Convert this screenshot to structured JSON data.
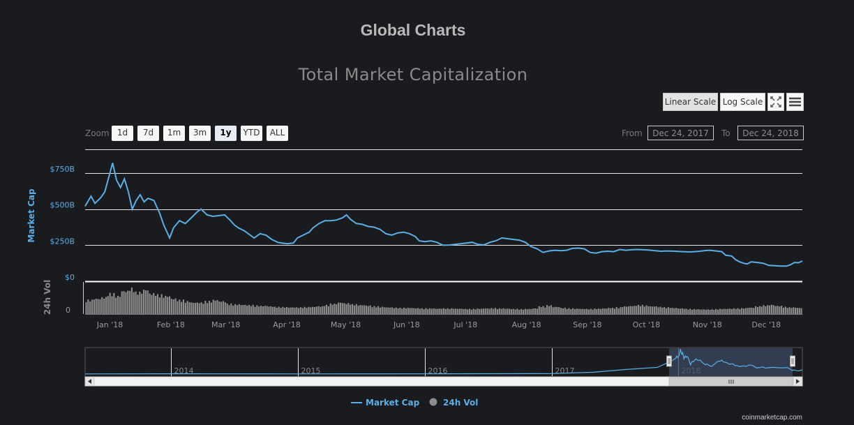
{
  "page_title": "Global Charts",
  "chart_title": "Total Market Capitalization",
  "buttons": {
    "linear_scale": "Linear Scale",
    "log_scale": "Log Scale",
    "fullscreen_icon": "fullscreen-icon",
    "menu_icon": "hamburger-menu-icon"
  },
  "zoom": {
    "label": "Zoom",
    "options": [
      "1d",
      "7d",
      "1m",
      "3m",
      "1y",
      "YTD",
      "ALL"
    ],
    "selected": "1y"
  },
  "range": {
    "from_label": "From",
    "from_value": "Dec 24, 2017",
    "to_label": "To",
    "to_value": "Dec 24, 2018"
  },
  "credit": "coinmarketcap.com",
  "colors": {
    "background": "#1a1b1f",
    "market_cap": "#5aafe7",
    "volume": "#8c8c8c",
    "navigator_mask": "#3b4a63"
  },
  "chart_data": {
    "type": "line",
    "x_range": [
      "2017-12-24",
      "2018-12-24"
    ],
    "x_ticks": [
      "Jan '18",
      "Feb '18",
      "Mar '18",
      "Apr '18",
      "May '18",
      "Jun '18",
      "Jul '18",
      "Aug '18",
      "Sep '18",
      "Oct '18",
      "Nov '18",
      "Dec '18"
    ],
    "y_axis": {
      "label": "Market Cap",
      "ticks": [
        "$0",
        "$250B",
        "$500B",
        "$750B"
      ],
      "range": [
        0,
        900
      ],
      "unit": "B USD"
    },
    "vol_axis": {
      "label": "24h Vol",
      "ticks": [
        "0"
      ]
    },
    "grid": true,
    "legend": {
      "position": "bottom-center",
      "items": [
        "Market Cap",
        "24h Vol"
      ]
    },
    "series": [
      {
        "name": "Market Cap",
        "points": [
          [
            "2017-12-24",
            520
          ],
          [
            "2017-12-27",
            590
          ],
          [
            "2017-12-29",
            540
          ],
          [
            "2018-01-01",
            580
          ],
          [
            "2018-01-03",
            620
          ],
          [
            "2018-01-05",
            720
          ],
          [
            "2018-01-07",
            820
          ],
          [
            "2018-01-09",
            700
          ],
          [
            "2018-01-11",
            650
          ],
          [
            "2018-01-13",
            710
          ],
          [
            "2018-01-15",
            620
          ],
          [
            "2018-01-17",
            500
          ],
          [
            "2018-01-19",
            560
          ],
          [
            "2018-01-21",
            600
          ],
          [
            "2018-01-23",
            550
          ],
          [
            "2018-01-25",
            575
          ],
          [
            "2018-01-28",
            560
          ],
          [
            "2018-01-31",
            470
          ],
          [
            "2018-02-02",
            390
          ],
          [
            "2018-02-05",
            300
          ],
          [
            "2018-02-07",
            370
          ],
          [
            "2018-02-10",
            420
          ],
          [
            "2018-02-13",
            400
          ],
          [
            "2018-02-16",
            440
          ],
          [
            "2018-02-19",
            480
          ],
          [
            "2018-02-21",
            500
          ],
          [
            "2018-02-24",
            460
          ],
          [
            "2018-02-27",
            450
          ],
          [
            "2018-03-02",
            455
          ],
          [
            "2018-03-05",
            460
          ],
          [
            "2018-03-08",
            420
          ],
          [
            "2018-03-10",
            390
          ],
          [
            "2018-03-12",
            370
          ],
          [
            "2018-03-15",
            350
          ],
          [
            "2018-03-17",
            330
          ],
          [
            "2018-03-20",
            300
          ],
          [
            "2018-03-23",
            330
          ],
          [
            "2018-03-26",
            320
          ],
          [
            "2018-03-29",
            290
          ],
          [
            "2018-04-01",
            270
          ],
          [
            "2018-04-03",
            265
          ],
          [
            "2018-04-06",
            260
          ],
          [
            "2018-04-09",
            265
          ],
          [
            "2018-04-11",
            300
          ],
          [
            "2018-04-14",
            320
          ],
          [
            "2018-04-17",
            340
          ],
          [
            "2018-04-19",
            370
          ],
          [
            "2018-04-22",
            400
          ],
          [
            "2018-04-25",
            420
          ],
          [
            "2018-04-28",
            420
          ],
          [
            "2018-05-01",
            425
          ],
          [
            "2018-05-04",
            440
          ],
          [
            "2018-05-06",
            460
          ],
          [
            "2018-05-08",
            430
          ],
          [
            "2018-05-11",
            400
          ],
          [
            "2018-05-14",
            395
          ],
          [
            "2018-05-17",
            380
          ],
          [
            "2018-05-20",
            375
          ],
          [
            "2018-05-23",
            360
          ],
          [
            "2018-05-26",
            330
          ],
          [
            "2018-05-29",
            320
          ],
          [
            "2018-06-01",
            335
          ],
          [
            "2018-06-04",
            340
          ],
          [
            "2018-06-07",
            330
          ],
          [
            "2018-06-10",
            310
          ],
          [
            "2018-06-12",
            280
          ],
          [
            "2018-06-15",
            275
          ],
          [
            "2018-06-18",
            280
          ],
          [
            "2018-06-21",
            270
          ],
          [
            "2018-06-24",
            250
          ],
          [
            "2018-06-27",
            250
          ],
          [
            "2018-06-30",
            255
          ],
          [
            "2018-07-03",
            260
          ],
          [
            "2018-07-06",
            265
          ],
          [
            "2018-07-09",
            270
          ],
          [
            "2018-07-12",
            255
          ],
          [
            "2018-07-15",
            252
          ],
          [
            "2018-07-18",
            270
          ],
          [
            "2018-07-21",
            280
          ],
          [
            "2018-07-24",
            300
          ],
          [
            "2018-07-27",
            295
          ],
          [
            "2018-07-30",
            290
          ],
          [
            "2018-08-02",
            285
          ],
          [
            "2018-08-05",
            270
          ],
          [
            "2018-08-08",
            240
          ],
          [
            "2018-08-11",
            225
          ],
          [
            "2018-08-14",
            200
          ],
          [
            "2018-08-17",
            210
          ],
          [
            "2018-08-20",
            215
          ],
          [
            "2018-08-23",
            212
          ],
          [
            "2018-08-26",
            215
          ],
          [
            "2018-08-29",
            228
          ],
          [
            "2018-09-01",
            230
          ],
          [
            "2018-09-04",
            225
          ],
          [
            "2018-09-07",
            200
          ],
          [
            "2018-09-10",
            195
          ],
          [
            "2018-09-13",
            205
          ],
          [
            "2018-09-16",
            208
          ],
          [
            "2018-09-19",
            205
          ],
          [
            "2018-09-22",
            220
          ],
          [
            "2018-09-25",
            215
          ],
          [
            "2018-09-28",
            218
          ],
          [
            "2018-10-01",
            220
          ],
          [
            "2018-10-04",
            218
          ],
          [
            "2018-10-07",
            216
          ],
          [
            "2018-10-10",
            212
          ],
          [
            "2018-10-13",
            208
          ],
          [
            "2018-10-16",
            210
          ],
          [
            "2018-10-20",
            208
          ],
          [
            "2018-10-24",
            205
          ],
          [
            "2018-10-28",
            203
          ],
          [
            "2018-11-01",
            207
          ],
          [
            "2018-11-04",
            212
          ],
          [
            "2018-11-07",
            215
          ],
          [
            "2018-11-10",
            210
          ],
          [
            "2018-11-13",
            205
          ],
          [
            "2018-11-15",
            180
          ],
          [
            "2018-11-18",
            175
          ],
          [
            "2018-11-20",
            150
          ],
          [
            "2018-11-22",
            135
          ],
          [
            "2018-11-24",
            125
          ],
          [
            "2018-11-26",
            120
          ],
          [
            "2018-11-28",
            135
          ],
          [
            "2018-12-01",
            130
          ],
          [
            "2018-12-04",
            125
          ],
          [
            "2018-12-07",
            110
          ],
          [
            "2018-12-10",
            108
          ],
          [
            "2018-12-13",
            105
          ],
          [
            "2018-12-16",
            105
          ],
          [
            "2018-12-18",
            115
          ],
          [
            "2018-12-20",
            130
          ],
          [
            "2018-12-22",
            128
          ],
          [
            "2018-12-24",
            140
          ]
        ]
      },
      {
        "name": "24h Vol",
        "type": "column",
        "values_relative": [
          0.55,
          0.6,
          0.65,
          0.8,
          0.7,
          0.9,
          1.0,
          0.85,
          0.95,
          0.8,
          0.75,
          0.7,
          0.6,
          0.55,
          0.5,
          0.45,
          0.45,
          0.5,
          0.55,
          0.5,
          0.4,
          0.38,
          0.36,
          0.35,
          0.33,
          0.32,
          0.3,
          0.28,
          0.27,
          0.26,
          0.26,
          0.27,
          0.28,
          0.3,
          0.35,
          0.4,
          0.45,
          0.42,
          0.38,
          0.35,
          0.33,
          0.3,
          0.28,
          0.26,
          0.25,
          0.24,
          0.24,
          0.23,
          0.22,
          0.22,
          0.21,
          0.22,
          0.22,
          0.21,
          0.2,
          0.2,
          0.21,
          0.22,
          0.23,
          0.22,
          0.21,
          0.2,
          0.19,
          0.2,
          0.22,
          0.3,
          0.34,
          0.28,
          0.24,
          0.22,
          0.21,
          0.2,
          0.2,
          0.21,
          0.22,
          0.24,
          0.26,
          0.3,
          0.32,
          0.35,
          0.33,
          0.3,
          0.28,
          0.26,
          0.24,
          0.22,
          0.2,
          0.19,
          0.18,
          0.18,
          0.19,
          0.2,
          0.21,
          0.22,
          0.23,
          0.25,
          0.3,
          0.34,
          0.36,
          0.32,
          0.28,
          0.26,
          0.24
        ]
      }
    ],
    "navigator": {
      "x_ticks": [
        "2014",
        "2015",
        "2016",
        "2017",
        "2018"
      ],
      "selection": [
        "2017-12-24",
        "2018-12-24"
      ]
    }
  }
}
